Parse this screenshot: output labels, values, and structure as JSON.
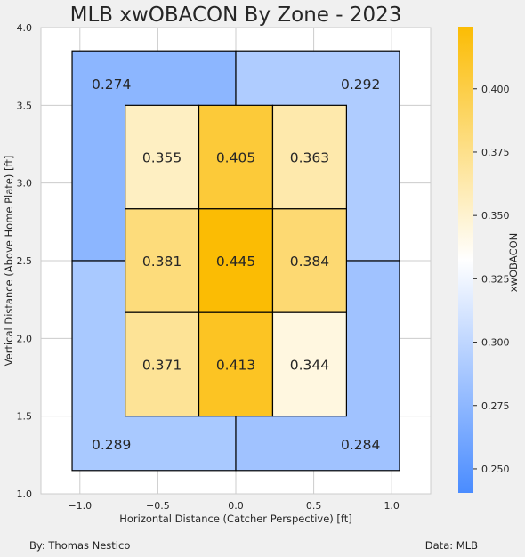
{
  "chart_data": {
    "type": "heatmap",
    "title": "MLB xwOBACON By Zone - 2023",
    "xlabel": "Horizontal Distance (Catcher Perspective) [ft]",
    "ylabel": "Vertical Distance (Above Home Plate) [ft]",
    "xlim": [
      -1.25,
      1.25
    ],
    "ylim": [
      1.0,
      4.0
    ],
    "xticks": [
      "−1.0",
      "−0.5",
      "0.0",
      "0.5",
      "1.0"
    ],
    "yticks": [
      "1.0",
      "1.5",
      "2.0",
      "2.5",
      "3.0",
      "3.5",
      "4.0"
    ],
    "grid": true,
    "outer_zones": [
      {
        "zone": "top-left",
        "value": 0.274,
        "label": "0.274"
      },
      {
        "zone": "top-right",
        "value": 0.292,
        "label": "0.292"
      },
      {
        "zone": "bottom-left",
        "value": 0.289,
        "label": "0.289"
      },
      {
        "zone": "bottom-right",
        "value": 0.284,
        "label": "0.284"
      }
    ],
    "inner_zones": [
      {
        "row": "top",
        "col": "left",
        "value": 0.355,
        "label": "0.355"
      },
      {
        "row": "top",
        "col": "middle",
        "value": 0.405,
        "label": "0.405"
      },
      {
        "row": "top",
        "col": "right",
        "value": 0.363,
        "label": "0.363"
      },
      {
        "row": "middle",
        "col": "left",
        "value": 0.381,
        "label": "0.381"
      },
      {
        "row": "middle",
        "col": "middle",
        "value": 0.445,
        "label": "0.445"
      },
      {
        "row": "middle",
        "col": "right",
        "value": 0.384,
        "label": "0.384"
      },
      {
        "row": "bottom",
        "col": "left",
        "value": 0.371,
        "label": "0.371"
      },
      {
        "row": "bottom",
        "col": "middle",
        "value": 0.413,
        "label": "0.413"
      },
      {
        "row": "bottom",
        "col": "right",
        "value": 0.344,
        "label": "0.344"
      }
    ],
    "colorbar": {
      "label": "xwOBACON",
      "range": [
        0.2405,
        0.4245
      ],
      "ticks": [
        "0.250",
        "0.275",
        "0.300",
        "0.325",
        "0.350",
        "0.375",
        "0.400"
      ],
      "colors": {
        "low": "#4a8cff",
        "mid": "#ffffff",
        "high": "#fbbc04"
      },
      "center": 0.3325
    }
  },
  "footer": {
    "left": "By: Thomas Nestico",
    "right": "Data: MLB"
  }
}
